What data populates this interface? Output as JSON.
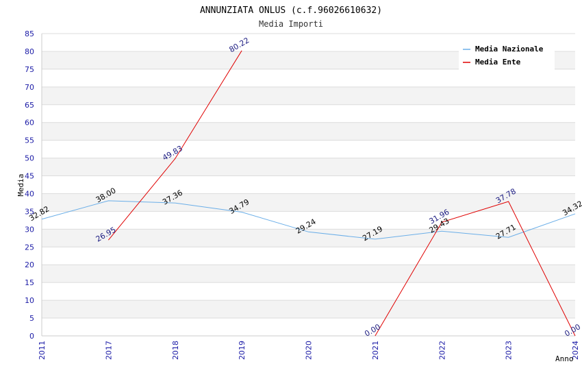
{
  "chart_data": {
    "type": "line",
    "title": "ANNUNZIATA ONLUS (c.f.96026610632)",
    "subtitle": "Media Importi",
    "xlabel": "Anno",
    "ylabel": "Media",
    "categories": [
      "2011",
      "2017",
      "2018",
      "2019",
      "2020",
      "2021",
      "2022",
      "2023",
      "2024"
    ],
    "yticks": [
      "0",
      "5",
      "10",
      "15",
      "20",
      "25",
      "30",
      "35",
      "40",
      "45",
      "50",
      "55",
      "60",
      "65",
      "70",
      "75",
      "80",
      "85"
    ],
    "ylim": [
      0,
      85
    ],
    "grid": true,
    "legend_position": "top-right",
    "series": [
      {
        "name": "Media Nazionale",
        "color": "#6aaee8",
        "values": [
          32.82,
          38.0,
          37.36,
          34.79,
          29.24,
          27.19,
          29.43,
          27.71,
          34.32
        ],
        "labels": [
          "32.82",
          "38.00",
          "37.36",
          "34.79",
          "29.24",
          "27.19",
          "29.43",
          "27.71",
          "34.32"
        ]
      },
      {
        "name": "Media Ente",
        "color": "#e00000",
        "values": [
          null,
          26.95,
          49.83,
          80.22,
          null,
          0.0,
          31.96,
          37.78,
          0.0
        ],
        "labels": [
          "",
          "26.95",
          "49.83",
          "80.22",
          "",
          "0.00",
          "31.96",
          "37.78",
          "0.00"
        ]
      }
    ]
  }
}
